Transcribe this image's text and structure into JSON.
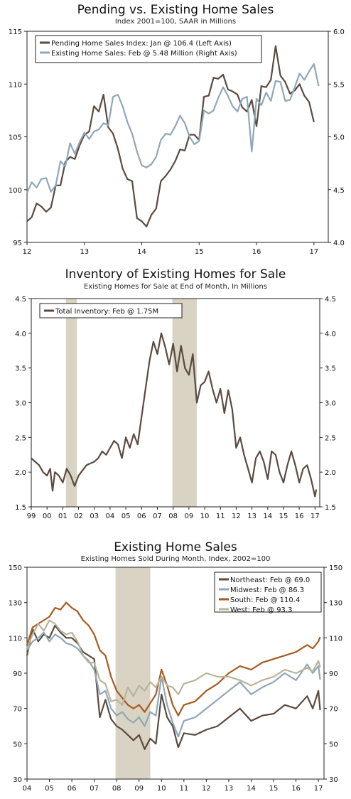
{
  "chart_data": [
    {
      "type": "line",
      "title": "Pending vs. Existing Home Sales",
      "subtitle": "Index 2001=100, SAAR in Millions",
      "x_ticks": [
        "12",
        "13",
        "14",
        "15",
        "16",
        "17"
      ],
      "y_left_ticks": [
        "115",
        "110",
        "105",
        "100",
        "95"
      ],
      "y_right_ticks": [
        "6.0",
        "5.5",
        "5.0",
        "4.5",
        "4.0"
      ],
      "ylim_left": [
        95,
        115
      ],
      "ylim_right": [
        4.0,
        6.0
      ],
      "legend_position": "top-left",
      "series": [
        {
          "name": "Pending Home Sales Index: Jan @ 106.4 (Left Axis)",
          "axis": "left",
          "color": "#5b4a3e",
          "x": [
            2012.0,
            2012.083,
            2012.167,
            2012.25,
            2012.333,
            2012.417,
            2012.5,
            2012.583,
            2012.667,
            2012.75,
            2012.833,
            2012.917,
            2013.0,
            2013.083,
            2013.167,
            2013.25,
            2013.333,
            2013.417,
            2013.5,
            2013.583,
            2013.667,
            2013.75,
            2013.833,
            2013.917,
            2014.0,
            2014.083,
            2014.167,
            2014.25,
            2014.333,
            2014.417,
            2014.5,
            2014.583,
            2014.667,
            2014.75,
            2014.833,
            2014.917,
            2015.0,
            2015.083,
            2015.167,
            2015.25,
            2015.333,
            2015.417,
            2015.5,
            2015.583,
            2015.667,
            2015.75,
            2015.833,
            2015.917,
            2016.0,
            2016.083,
            2016.167,
            2016.25,
            2016.333,
            2016.417,
            2016.5,
            2016.583,
            2016.667,
            2016.75,
            2016.833,
            2016.917,
            2017.0
          ],
          "values": [
            97.0,
            97.4,
            98.7,
            98.4,
            97.9,
            98.3,
            100.4,
            100.4,
            102.6,
            103.1,
            102.9,
            104.2,
            105.2,
            105.5,
            107.9,
            107.4,
            109.0,
            105.9,
            105.3,
            103.9,
            102.0,
            101.0,
            100.8,
            97.3,
            97.0,
            96.5,
            97.6,
            98.2,
            100.8,
            101.3,
            101.9,
            102.7,
            103.8,
            103.7,
            105.2,
            105.2,
            104.7,
            108.8,
            108.9,
            110.6,
            110.5,
            110.9,
            109.5,
            109.3,
            109.0,
            107.8,
            107.4,
            108.5,
            106.0,
            109.8,
            109.7,
            110.4,
            113.6,
            110.8,
            110.2,
            109.1,
            109.4,
            110.0,
            108.9,
            108.3,
            106.4
          ]
        },
        {
          "name": "Existing Home Sales: Feb @ 5.48 Million (Right Axis)",
          "axis": "right",
          "color": "#8fa7b8",
          "x": [
            2012.0,
            2012.083,
            2012.167,
            2012.25,
            2012.333,
            2012.417,
            2012.5,
            2012.583,
            2012.667,
            2012.75,
            2012.833,
            2012.917,
            2013.0,
            2013.083,
            2013.167,
            2013.25,
            2013.333,
            2013.417,
            2013.5,
            2013.583,
            2013.667,
            2013.75,
            2013.833,
            2013.917,
            2014.0,
            2014.083,
            2014.167,
            2014.25,
            2014.333,
            2014.417,
            2014.5,
            2014.583,
            2014.667,
            2014.75,
            2014.833,
            2014.917,
            2015.0,
            2015.083,
            2015.167,
            2015.25,
            2015.333,
            2015.417,
            2015.5,
            2015.583,
            2015.667,
            2015.75,
            2015.833,
            2015.917,
            2016.0,
            2016.083,
            2016.167,
            2016.25,
            2016.333,
            2016.417,
            2016.5,
            2016.583,
            2016.667,
            2016.75,
            2016.833,
            2016.917,
            2017.0,
            2017.083
          ],
          "values": [
            4.47,
            4.57,
            4.52,
            4.6,
            4.61,
            4.48,
            4.54,
            4.77,
            4.72,
            4.94,
            4.84,
            4.95,
            5.04,
            4.98,
            5.05,
            5.07,
            5.13,
            5.11,
            5.38,
            5.4,
            5.29,
            5.14,
            5.03,
            4.86,
            4.73,
            4.71,
            4.74,
            4.81,
            4.97,
            5.03,
            5.02,
            5.1,
            5.2,
            5.13,
            5.0,
            4.93,
            4.96,
            5.25,
            5.22,
            5.25,
            5.37,
            5.47,
            5.39,
            5.29,
            5.24,
            5.36,
            5.38,
            4.86,
            5.36,
            5.3,
            5.42,
            5.34,
            5.53,
            5.52,
            5.34,
            5.35,
            5.47,
            5.6,
            5.54,
            5.62,
            5.69,
            5.48
          ]
        }
      ]
    },
    {
      "type": "line",
      "title": "Inventory of Existing Homes for Sale",
      "subtitle": "Existing Homes for Sale at End of Month, In Millions",
      "x_ticks": [
        "99",
        "00",
        "01",
        "02",
        "03",
        "04",
        "05",
        "06",
        "07",
        "08",
        "09",
        "10",
        "11",
        "12",
        "13",
        "14",
        "15",
        "16",
        "17"
      ],
      "y_left_ticks": [
        "4.5",
        "4.0",
        "3.5",
        "3.0",
        "2.5",
        "2.0",
        "1.5"
      ],
      "y_right_ticks": [
        "4.5",
        "4.0",
        "3.5",
        "3.0",
        "2.5",
        "2.0",
        "1.5"
      ],
      "ylim": [
        1.5,
        4.5
      ],
      "legend_position": "top-left",
      "recessions": [
        [
          2001.2,
          2001.9
        ],
        [
          2007.95,
          2009.5
        ]
      ],
      "series": [
        {
          "name": "Total Inventory: Feb @ 1.75M",
          "color": "#5b4a3e",
          "x": [
            1999.0,
            1999.25,
            1999.5,
            1999.75,
            2000.0,
            2000.2,
            2000.35,
            2000.5,
            2000.75,
            2001.0,
            2001.25,
            2001.5,
            2001.75,
            2002.0,
            2002.5,
            2003.0,
            2003.25,
            2003.5,
            2003.75,
            2004.0,
            2004.25,
            2004.5,
            2004.75,
            2005.0,
            2005.25,
            2005.5,
            2005.75,
            2006.0,
            2006.25,
            2006.5,
            2006.75,
            2007.0,
            2007.25,
            2007.5,
            2007.75,
            2008.0,
            2008.25,
            2008.5,
            2008.75,
            2009.0,
            2009.25,
            2009.5,
            2009.75,
            2010.0,
            2010.25,
            2010.5,
            2010.75,
            2011.0,
            2011.25,
            2011.5,
            2011.75,
            2012.0,
            2012.25,
            2012.5,
            2012.75,
            2013.0,
            2013.25,
            2013.5,
            2013.75,
            2014.0,
            2014.25,
            2014.5,
            2014.75,
            2015.0,
            2015.25,
            2015.5,
            2015.75,
            2016.0,
            2016.25,
            2016.5,
            2016.75,
            2017.0,
            2017.08
          ],
          "values": [
            2.2,
            2.15,
            2.1,
            2.0,
            1.95,
            2.05,
            1.73,
            2.0,
            1.95,
            1.85,
            2.05,
            1.95,
            1.8,
            1.95,
            2.1,
            2.15,
            2.2,
            2.3,
            2.25,
            2.35,
            2.45,
            2.4,
            2.2,
            2.5,
            2.35,
            2.55,
            2.4,
            2.8,
            3.2,
            3.6,
            3.88,
            3.7,
            4.0,
            3.8,
            3.55,
            3.85,
            3.45,
            3.82,
            3.5,
            3.4,
            3.7,
            3.0,
            3.25,
            3.3,
            3.45,
            3.2,
            3.0,
            3.2,
            2.85,
            3.18,
            2.9,
            2.35,
            2.5,
            2.25,
            2.05,
            1.85,
            2.2,
            2.3,
            2.15,
            1.9,
            2.3,
            2.25,
            2.0,
            1.85,
            2.1,
            2.3,
            2.1,
            1.85,
            2.05,
            2.1,
            1.9,
            1.65,
            1.75
          ]
        }
      ]
    },
    {
      "type": "line",
      "title": "Existing Home Sales",
      "subtitle": "Existing Homes Sold During Month, Index, 2002=100",
      "x_ticks": [
        "04",
        "05",
        "06",
        "07",
        "08",
        "09",
        "10",
        "11",
        "12",
        "13",
        "14",
        "15",
        "16",
        "17"
      ],
      "y_left_ticks": [
        "150",
        "130",
        "110",
        "90",
        "70",
        "50",
        "30"
      ],
      "y_right_ticks": [
        "150",
        "130",
        "110",
        "90",
        "70",
        "50",
        "30"
      ],
      "ylim": [
        30,
        150
      ],
      "legend_position": "top-right",
      "recessions": [
        [
          2007.95,
          2009.5
        ]
      ],
      "series": [
        {
          "name": "Northeast: Feb @ 69.0",
          "color": "#5b4a3e",
          "x": [
            2004.0,
            2004.25,
            2004.5,
            2004.75,
            2005.0,
            2005.25,
            2005.5,
            2005.75,
            2006.0,
            2006.25,
            2006.5,
            2006.75,
            2007.0,
            2007.25,
            2007.5,
            2007.75,
            2008.0,
            2008.25,
            2008.5,
            2008.75,
            2009.0,
            2009.25,
            2009.5,
            2009.75,
            2010.0,
            2010.25,
            2010.5,
            2010.75,
            2011.0,
            2011.5,
            2012.0,
            2012.5,
            2013.0,
            2013.5,
            2014.0,
            2014.5,
            2015.0,
            2015.5,
            2016.0,
            2016.5,
            2016.75,
            2017.0,
            2017.08
          ],
          "values": [
            100,
            115,
            108,
            112,
            110,
            117,
            113,
            110,
            110,
            107,
            102,
            100,
            98,
            65,
            75,
            64,
            60,
            58,
            55,
            52,
            55,
            47,
            53,
            50,
            78,
            65,
            60,
            48,
            56,
            55,
            58,
            60,
            65,
            70,
            63,
            66,
            67,
            72,
            70,
            77,
            70,
            80,
            69
          ]
        },
        {
          "name": "Midwest: Feb @ 86.3",
          "color": "#8fa7b8",
          "x": [
            2004.0,
            2004.25,
            2004.5,
            2004.75,
            2005.0,
            2005.25,
            2005.5,
            2005.75,
            2006.0,
            2006.25,
            2006.5,
            2006.75,
            2007.0,
            2007.25,
            2007.5,
            2007.75,
            2008.0,
            2008.25,
            2008.5,
            2008.75,
            2009.0,
            2009.25,
            2009.5,
            2009.75,
            2010.0,
            2010.25,
            2010.5,
            2010.75,
            2011.0,
            2011.5,
            2012.0,
            2012.5,
            2013.0,
            2013.5,
            2014.0,
            2014.5,
            2015.0,
            2015.5,
            2016.0,
            2016.5,
            2016.75,
            2017.0,
            2017.08
          ],
          "values": [
            103,
            108,
            110,
            113,
            108,
            112,
            110,
            107,
            106,
            104,
            100,
            97,
            92,
            78,
            80,
            70,
            66,
            68,
            64,
            62,
            65,
            60,
            68,
            66,
            88,
            72,
            62,
            54,
            63,
            65,
            70,
            75,
            80,
            85,
            78,
            82,
            85,
            90,
            86,
            95,
            90,
            94,
            86.3
          ]
        },
        {
          "name": "South: Feb @ 110.4",
          "color": "#a85a1e",
          "x": [
            2004.0,
            2004.25,
            2004.5,
            2004.75,
            2005.0,
            2005.25,
            2005.5,
            2005.75,
            2006.0,
            2006.25,
            2006.5,
            2006.75,
            2007.0,
            2007.25,
            2007.5,
            2007.75,
            2008.0,
            2008.25,
            2008.5,
            2008.75,
            2009.0,
            2009.25,
            2009.5,
            2009.75,
            2010.0,
            2010.25,
            2010.5,
            2010.75,
            2011.0,
            2011.5,
            2012.0,
            2012.5,
            2013.0,
            2013.5,
            2014.0,
            2014.5,
            2015.0,
            2015.5,
            2016.0,
            2016.5,
            2016.75,
            2017.0,
            2017.08
          ],
          "values": [
            106,
            116,
            118,
            120,
            122,
            127,
            126,
            130,
            127,
            125,
            120,
            117,
            112,
            103,
            100,
            88,
            80,
            76,
            72,
            70,
            72,
            68,
            73,
            78,
            92,
            83,
            72,
            66,
            72,
            74,
            80,
            84,
            90,
            94,
            92,
            96,
            98,
            100,
            102,
            106,
            104,
            108,
            110.4
          ]
        },
        {
          "name": "West: Feb @ 93.3",
          "color": "#b8b49a",
          "x": [
            2004.0,
            2004.25,
            2004.5,
            2004.75,
            2005.0,
            2005.25,
            2005.5,
            2005.75,
            2006.0,
            2006.25,
            2006.5,
            2006.75,
            2007.0,
            2007.25,
            2007.5,
            2007.75,
            2008.0,
            2008.25,
            2008.5,
            2008.75,
            2009.0,
            2009.25,
            2009.5,
            2009.75,
            2010.0,
            2010.25,
            2010.5,
            2010.75,
            2011.0,
            2011.5,
            2012.0,
            2012.5,
            2013.0,
            2013.5,
            2014.0,
            2014.5,
            2015.0,
            2015.5,
            2016.0,
            2016.5,
            2016.75,
            2017.0,
            2017.08
          ],
          "values": [
            104,
            112,
            118,
            114,
            120,
            118,
            114,
            112,
            113,
            108,
            100,
            96,
            96,
            86,
            84,
            74,
            75,
            72,
            82,
            77,
            83,
            80,
            85,
            82,
            88,
            83,
            82,
            78,
            84,
            86,
            90,
            88,
            88,
            86,
            83,
            86,
            88,
            92,
            90,
            93,
            91,
            97,
            93.3
          ]
        }
      ]
    }
  ]
}
